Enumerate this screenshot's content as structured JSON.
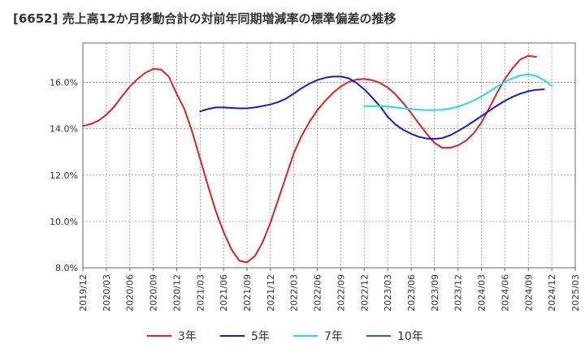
{
  "chart_data": {
    "type": "line",
    "title": "[6652]  売上高12か月移動合計の対前年同期増減率の標準偏差の推移",
    "xlabel": "",
    "ylabel": "",
    "ylim": [
      8.0,
      17.7
    ],
    "yticks": [
      8.0,
      10.0,
      12.0,
      14.0,
      16.0
    ],
    "ytick_labels": [
      "8.0%",
      "10.0%",
      "12.0%",
      "14.0%",
      "16.0%"
    ],
    "x_tick_labels": [
      "2019/12",
      "2020/03",
      "2020/06",
      "2020/09",
      "2020/12",
      "2021/03",
      "2021/06",
      "2021/09",
      "2021/12",
      "2022/03",
      "2022/06",
      "2022/09",
      "2022/12",
      "2023/03",
      "2023/06",
      "2023/09",
      "2023/12",
      "2024/03",
      "2024/06",
      "2024/09",
      "2024/12",
      "2025/03"
    ],
    "grid": true,
    "legend_position": "bottom",
    "series": [
      {
        "name": "3年",
        "color": "#dd2222",
        "values": [
          [
            "2019/12",
            14.12
          ],
          [
            "2020/01",
            14.2
          ],
          [
            "2020/02",
            14.35
          ],
          [
            "2020/03",
            14.6
          ],
          [
            "2020/04",
            14.95
          ],
          [
            "2020/05",
            15.4
          ],
          [
            "2020/06",
            15.82
          ],
          [
            "2020/07",
            16.15
          ],
          [
            "2020/08",
            16.42
          ],
          [
            "2020/09",
            16.58
          ],
          [
            "2020/10",
            16.55
          ],
          [
            "2020/11",
            16.25
          ],
          [
            "2020/12",
            15.5
          ],
          [
            "2021/01",
            14.85
          ],
          [
            "2021/02",
            13.85
          ],
          [
            "2021/03",
            12.7
          ],
          [
            "2021/04",
            11.55
          ],
          [
            "2021/05",
            10.45
          ],
          [
            "2021/06",
            9.55
          ],
          [
            "2021/07",
            8.8
          ],
          [
            "2021/08",
            8.3
          ],
          [
            "2021/09",
            8.23
          ],
          [
            "2021/10",
            8.5
          ],
          [
            "2021/11",
            9.1
          ],
          [
            "2021/12",
            9.95
          ],
          [
            "2022/01",
            10.95
          ],
          [
            "2022/02",
            11.95
          ],
          [
            "2022/03",
            12.95
          ],
          [
            "2022/04",
            13.7
          ],
          [
            "2022/05",
            14.3
          ],
          [
            "2022/06",
            14.8
          ],
          [
            "2022/07",
            15.2
          ],
          [
            "2022/08",
            15.55
          ],
          [
            "2022/09",
            15.82
          ],
          [
            "2022/10",
            16.02
          ],
          [
            "2022/11",
            16.12
          ],
          [
            "2022/12",
            16.15
          ],
          [
            "2023/01",
            16.1
          ],
          [
            "2023/02",
            15.98
          ],
          [
            "2023/03",
            15.78
          ],
          [
            "2023/04",
            15.48
          ],
          [
            "2023/05",
            15.1
          ],
          [
            "2023/06",
            14.68
          ],
          [
            "2023/07",
            14.22
          ],
          [
            "2023/08",
            13.78
          ],
          [
            "2023/09",
            13.38
          ],
          [
            "2023/10",
            13.18
          ],
          [
            "2023/11",
            13.18
          ],
          [
            "2023/12",
            13.28
          ],
          [
            "2024/01",
            13.48
          ],
          [
            "2024/02",
            13.8
          ],
          [
            "2024/03",
            14.28
          ],
          [
            "2024/04",
            14.9
          ],
          [
            "2024/05",
            15.55
          ],
          [
            "2024/06",
            16.15
          ],
          [
            "2024/07",
            16.62
          ],
          [
            "2024/08",
            17.0
          ],
          [
            "2024/09",
            17.15
          ],
          [
            "2024/10",
            17.1
          ]
        ]
      },
      {
        "name": "5年",
        "color": "#1a1acc",
        "values": [
          [
            "2021/03",
            14.75
          ],
          [
            "2021/04",
            14.85
          ],
          [
            "2021/05",
            14.92
          ],
          [
            "2021/06",
            14.92
          ],
          [
            "2021/07",
            14.9
          ],
          [
            "2021/08",
            14.88
          ],
          [
            "2021/09",
            14.88
          ],
          [
            "2021/10",
            14.92
          ],
          [
            "2021/11",
            14.98
          ],
          [
            "2021/12",
            15.05
          ],
          [
            "2022/01",
            15.15
          ],
          [
            "2022/02",
            15.3
          ],
          [
            "2022/03",
            15.52
          ],
          [
            "2022/04",
            15.75
          ],
          [
            "2022/05",
            15.95
          ],
          [
            "2022/06",
            16.1
          ],
          [
            "2022/07",
            16.2
          ],
          [
            "2022/08",
            16.25
          ],
          [
            "2022/09",
            16.25
          ],
          [
            "2022/10",
            16.18
          ],
          [
            "2022/11",
            15.98
          ],
          [
            "2022/12",
            15.7
          ],
          [
            "2023/01",
            15.35
          ],
          [
            "2023/02",
            14.98
          ],
          [
            "2023/03",
            14.52
          ],
          [
            "2023/04",
            14.18
          ],
          [
            "2023/05",
            13.95
          ],
          [
            "2023/06",
            13.78
          ],
          [
            "2023/07",
            13.65
          ],
          [
            "2023/08",
            13.58
          ],
          [
            "2023/09",
            13.56
          ],
          [
            "2023/10",
            13.6
          ],
          [
            "2023/11",
            13.72
          ],
          [
            "2023/12",
            13.9
          ],
          [
            "2024/01",
            14.1
          ],
          [
            "2024/02",
            14.32
          ],
          [
            "2024/03",
            14.55
          ],
          [
            "2024/04",
            14.78
          ],
          [
            "2024/05",
            15.0
          ],
          [
            "2024/06",
            15.2
          ],
          [
            "2024/07",
            15.38
          ],
          [
            "2024/08",
            15.52
          ],
          [
            "2024/09",
            15.62
          ],
          [
            "2024/10",
            15.68
          ],
          [
            "2024/11",
            15.7
          ]
        ]
      },
      {
        "name": "7年",
        "color": "#22dddd",
        "values": [
          [
            "2022/12",
            14.98
          ],
          [
            "2023/01",
            14.98
          ],
          [
            "2023/02",
            14.98
          ],
          [
            "2023/03",
            14.95
          ],
          [
            "2023/04",
            14.92
          ],
          [
            "2023/05",
            14.88
          ],
          [
            "2023/06",
            14.85
          ],
          [
            "2023/07",
            14.82
          ],
          [
            "2023/08",
            14.8
          ],
          [
            "2023/09",
            14.8
          ],
          [
            "2023/10",
            14.82
          ],
          [
            "2023/11",
            14.87
          ],
          [
            "2023/12",
            14.95
          ],
          [
            "2024/01",
            15.07
          ],
          [
            "2024/02",
            15.22
          ],
          [
            "2024/03",
            15.4
          ],
          [
            "2024/04",
            15.6
          ],
          [
            "2024/05",
            15.82
          ],
          [
            "2024/06",
            16.02
          ],
          [
            "2024/07",
            16.18
          ],
          [
            "2024/08",
            16.3
          ],
          [
            "2024/09",
            16.35
          ],
          [
            "2024/10",
            16.28
          ],
          [
            "2024/11",
            16.1
          ],
          [
            "2024/12",
            15.85
          ]
        ]
      },
      {
        "name": "10年",
        "color": "#228822",
        "values": []
      }
    ]
  }
}
